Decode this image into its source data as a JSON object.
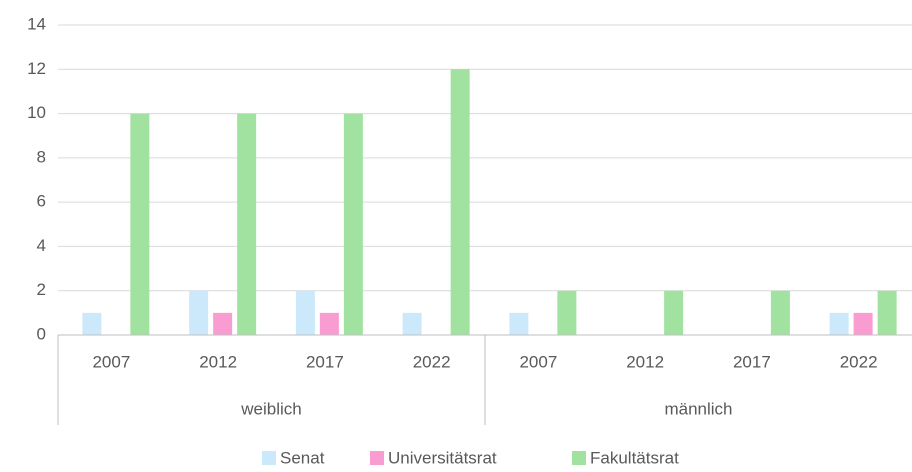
{
  "chart_data": {
    "type": "bar",
    "categories": [
      "2007",
      "2012",
      "2017",
      "2022",
      "2007",
      "2012",
      "2017",
      "2022"
    ],
    "groups": [
      "weiblich",
      "männlich"
    ],
    "series": [
      {
        "name": "Senat",
        "color": "#cce9fb",
        "values": [
          1,
          2,
          2,
          1,
          1,
          0,
          0,
          1
        ]
      },
      {
        "name": "Universitätsrat",
        "color": "#f99cd2",
        "values": [
          0,
          1,
          1,
          0,
          0,
          0,
          0,
          1
        ]
      },
      {
        "name": "Fakultätsrat",
        "color": "#a1e2a1",
        "values": [
          10,
          10,
          10,
          12,
          2,
          2,
          2,
          2
        ]
      }
    ],
    "ylim": [
      0,
      14
    ],
    "yticks": [
      0,
      2,
      4,
      6,
      8,
      10,
      12,
      14
    ],
    "grid": true,
    "legend": "bottom"
  }
}
